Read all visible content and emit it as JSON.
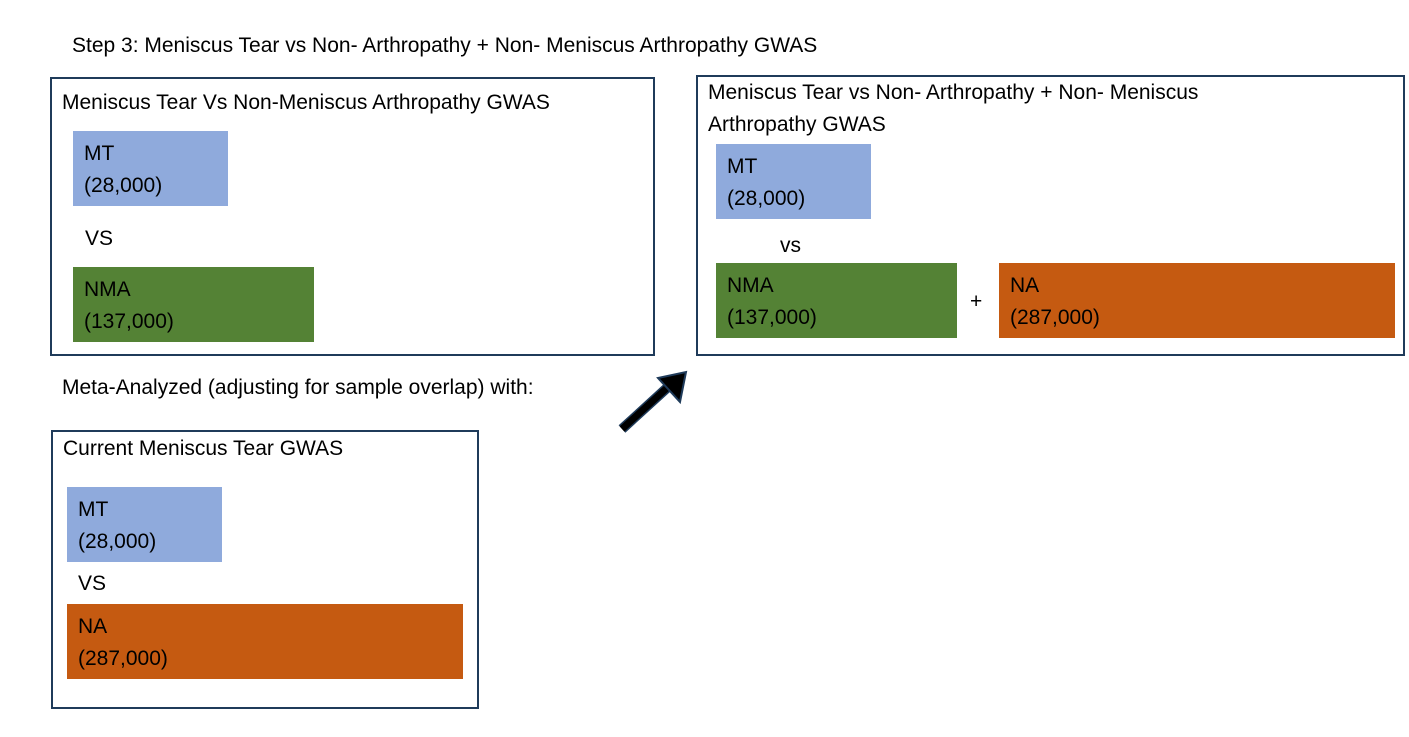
{
  "title": "Step 3: Meniscus Tear vs Non- Arthropathy + Non- Meniscus Arthropathy GWAS",
  "colors": {
    "mt": "#8faadc",
    "nma": "#548235",
    "na": "#c55a11",
    "border": "#1f3b5a"
  },
  "panel_left": {
    "title": "Meniscus Tear Vs Non-Meniscus Arthropathy GWAS",
    "mt": {
      "name": "MT",
      "count": "(28,000)"
    },
    "vs": "VS",
    "nma": {
      "name": "NMA",
      "count": "(137,000)"
    }
  },
  "meta_text": "Meta-Analyzed (adjusting for sample overlap) with:",
  "panel_bottom": {
    "title": "Current Meniscus Tear GWAS",
    "mt": {
      "name": "MT",
      "count": "(28,000)"
    },
    "vs": "VS",
    "na": {
      "name": "NA",
      "count": "(287,000)"
    }
  },
  "panel_right": {
    "title_line1": "Meniscus Tear vs Non- Arthropathy + Non- Meniscus",
    "title_line2": "Arthropathy GWAS",
    "mt": {
      "name": "MT",
      "count": "(28,000)"
    },
    "vs": "vs",
    "nma": {
      "name": "NMA",
      "count": "(137,000)"
    },
    "plus": "+",
    "na": {
      "name": "NA",
      "count": "(287,000)"
    }
  },
  "arrow_icon": "arrow-up-right-icon"
}
